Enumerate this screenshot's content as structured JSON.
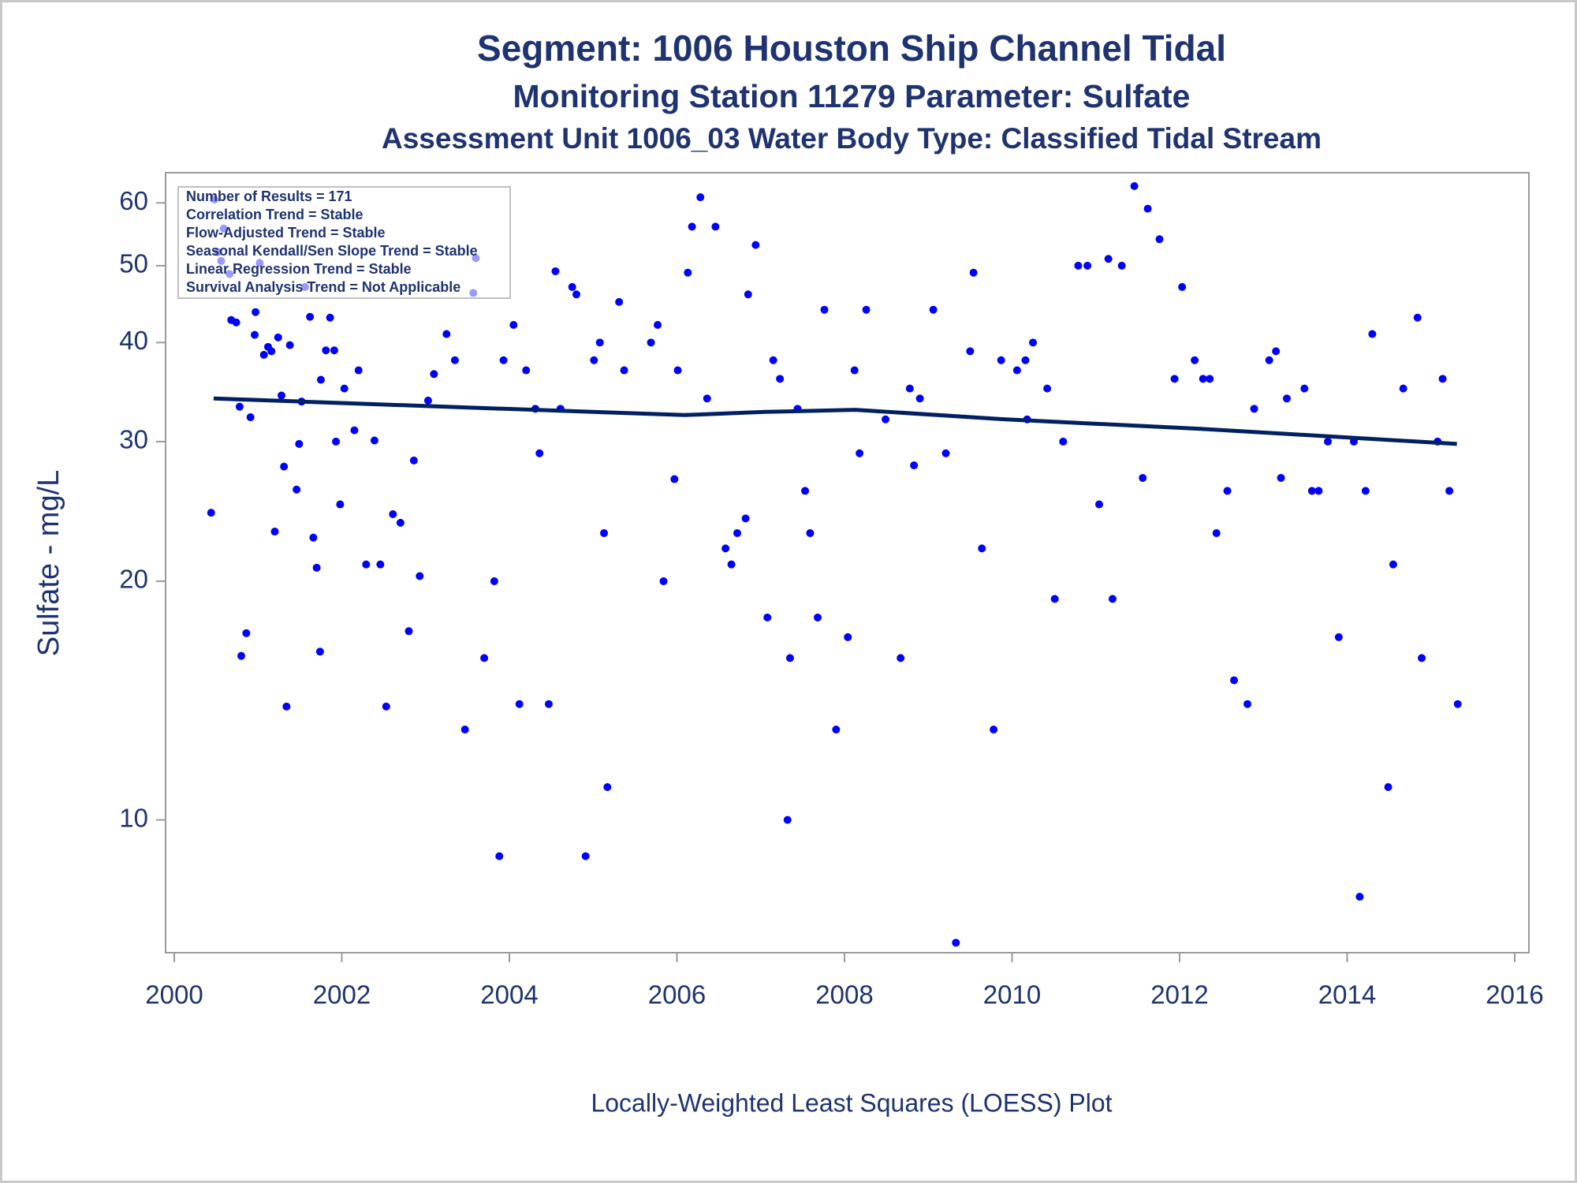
{
  "chart_data": {
    "type": "scatter",
    "title": "Segment: 1006  Houston Ship Channel Tidal",
    "subtitle": "Monitoring Station 11279 Parameter: Sulfate",
    "subtitle2": "Assessment Unit 1006_03   Water Body Type: Classified Tidal Stream",
    "ylabel": "Sulfate - mg/L",
    "footer": "Locally-Weighted Least Squares (LOESS) Plot",
    "annotations": [
      "Number of Results = 171",
      "Correlation Trend = Stable",
      "Flow-Adjusted Trend = Stable",
      "Seasonal Kendall/Sen Slope Trend = Stable",
      "Linear Regression Trend = Stable",
      "Survival Analysis Trend = Not Applicable"
    ],
    "log_y": true,
    "xlim": [
      2000,
      2016
    ],
    "xticks": [
      2000,
      2002,
      2004,
      2006,
      2008,
      2010,
      2012,
      2014,
      2016
    ],
    "ylim": [
      6.8,
      65.5
    ],
    "yticks": [
      10,
      20,
      30,
      40,
      50,
      60
    ],
    "color": "#0000ff",
    "x": [
      2000.44,
      2000.48,
      2000.52,
      2000.59,
      2000.56,
      2000.66,
      2000.68,
      2000.74,
      2000.78,
      2000.8,
      2000.86,
      2000.91,
      2000.96,
      2000.97,
      2001.02,
      2001.07,
      2001.12,
      2001.16,
      2001.2,
      2001.24,
      2001.28,
      2001.31,
      2001.34,
      2001.38,
      2001.46,
      2001.49,
      2001.52,
      2001.56,
      2001.62,
      2001.66,
      2001.7,
      2001.74,
      2001.75,
      2001.81,
      2001.86,
      2001.91,
      2001.93,
      2001.98,
      2002.03,
      2002.15,
      2002.2,
      2002.29,
      2002.39,
      2002.46,
      2002.53,
      2002.61,
      2002.7,
      2002.8,
      2002.86,
      2002.93,
      2003.03,
      2003.1,
      2003.25,
      2003.35,
      2003.47,
      2003.57,
      2003.6,
      2003.7,
      2003.82,
      2003.88,
      2003.93,
      2004.05,
      2004.12,
      2004.2,
      2004.31,
      2004.36,
      2004.47,
      2004.55,
      2004.61,
      2004.75,
      2004.8,
      2004.91,
      2005.01,
      2005.08,
      2005.13,
      2005.17,
      2005.31,
      2005.37,
      2005.69,
      2005.77,
      2005.84,
      2005.97,
      2006.01,
      2006.13,
      2006.18,
      2006.28,
      2006.36,
      2006.46,
      2006.58,
      2006.65,
      2006.72,
      2006.82,
      2006.85,
      2006.94,
      2007.08,
      2007.15,
      2007.23,
      2007.32,
      2007.35,
      2007.44,
      2007.53,
      2007.59,
      2007.68,
      2007.76,
      2007.9,
      2008.04,
      2008.12,
      2008.18,
      2008.26,
      2008.49,
      2008.67,
      2008.78,
      2008.83,
      2008.9,
      2009.06,
      2009.21,
      2009.33,
      2009.5,
      2009.54,
      2009.64,
      2009.78,
      2009.87,
      2010.06,
      2010.16,
      2010.18,
      2010.25,
      2010.42,
      2010.51,
      2010.61,
      2010.79,
      2010.9,
      2011.04,
      2011.15,
      2011.2,
      2011.31,
      2011.46,
      2011.56,
      2011.62,
      2011.76,
      2011.94,
      2012.03,
      2012.18,
      2012.28,
      2012.36,
      2012.44,
      2012.57,
      2012.65,
      2012.81,
      2012.89,
      2013.07,
      2013.15,
      2013.21,
      2013.28,
      2013.49,
      2013.58,
      2013.66,
      2013.77,
      2013.9,
      2014.08,
      2014.15,
      2014.22,
      2014.3,
      2014.49,
      2014.55,
      2014.67,
      2014.84,
      2014.89,
      2015.08,
      2015.14,
      2015.22,
      2015.32
    ],
    "values": [
      24.4,
      60.6,
      52,
      55.7,
      50.7,
      48.8,
      42.7,
      42.4,
      33.2,
      16.1,
      17.2,
      32.2,
      40.9,
      43.7,
      50.4,
      38.6,
      39.5,
      39,
      23.1,
      40.6,
      34.3,
      27.9,
      13.9,
      39.7,
      26.1,
      29.8,
      33.7,
      47,
      43.1,
      22.7,
      20.8,
      16.3,
      35.9,
      39.1,
      43,
      39.1,
      30,
      25,
      35,
      31,
      36.9,
      21,
      30.1,
      21,
      13.9,
      24.3,
      23.7,
      17.3,
      28.4,
      20.3,
      33.8,
      36.5,
      41,
      38,
      13,
      46.2,
      51.1,
      16,
      20,
      9,
      38,
      42.1,
      14,
      36.9,
      33,
      29,
      14,
      49.2,
      33,
      47,
      46,
      9,
      38,
      40,
      23,
      11,
      45,
      36.9,
      40,
      42.1,
      20,
      26.9,
      36.9,
      49,
      56,
      61,
      34,
      56,
      22,
      21,
      23,
      24,
      46,
      53.1,
      18,
      38,
      36,
      10,
      16,
      33,
      26,
      23,
      18,
      44,
      13,
      17,
      36.9,
      29,
      44,
      32,
      16,
      35,
      28,
      34,
      44,
      29,
      7,
      39,
      49,
      22,
      13,
      38,
      36.9,
      38,
      32,
      40,
      35,
      19,
      30,
      50,
      50,
      25,
      51,
      19,
      50,
      63,
      27,
      59,
      54,
      36,
      47,
      38,
      36,
      36,
      23,
      26,
      15,
      14,
      33,
      38,
      39,
      27,
      34,
      35,
      26,
      26,
      30,
      17,
      30,
      8,
      26,
      41,
      11,
      21,
      35,
      43,
      16,
      30,
      36,
      26,
      14
    ],
    "fit": {
      "color": "#002060",
      "x": [
        2000.47,
        2001.52,
        2003.93,
        2006.09,
        2007.05,
        2008.13,
        2009.93,
        2012.33,
        2015.31
      ],
      "values": [
        34.0,
        33.7,
        33.0,
        32.4,
        32.7,
        32.9,
        32.0,
        31.1,
        29.8
      ]
    }
  }
}
